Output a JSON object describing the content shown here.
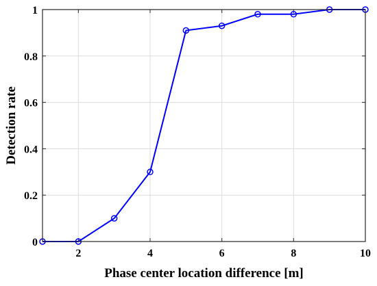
{
  "chart_data": {
    "type": "line",
    "title": "",
    "xlabel": "Phase center location difference [m]",
    "ylabel": "Detection rate",
    "xlim": [
      1,
      10
    ],
    "ylim": [
      0,
      1
    ],
    "xticks": [
      2,
      4,
      6,
      8,
      10
    ],
    "yticks": [
      0,
      0.2,
      0.4,
      0.6,
      0.8,
      1
    ],
    "xtick_labels": [
      "2",
      "4",
      "6",
      "8",
      "10"
    ],
    "ytick_labels": [
      "0",
      "0.2",
      "0.4",
      "0.6",
      "0.8",
      "1"
    ],
    "grid": true,
    "series": [
      {
        "color": "#0000ff",
        "marker": "circle",
        "x": [
          1,
          2,
          3,
          4,
          5,
          6,
          7,
          8,
          9,
          10
        ],
        "y": [
          0,
          0,
          0.1,
          0.3,
          0.91,
          0.93,
          0.98,
          0.98,
          1,
          1
        ]
      }
    ]
  }
}
